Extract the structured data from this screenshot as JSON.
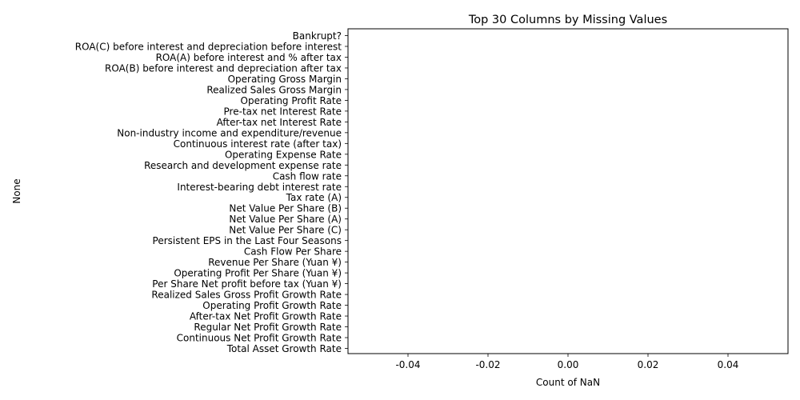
{
  "chart_data": {
    "type": "bar",
    "orientation": "horizontal",
    "title": "Top 30 Columns by Missing Values",
    "xlabel": "Count of NaN",
    "ylabel": "None",
    "xlim": [
      -0.055,
      0.055
    ],
    "xticks": [
      "-0.04",
      "-0.02",
      "0.00",
      "0.02",
      "0.04"
    ],
    "xtick_values": [
      -0.04,
      -0.02,
      0.0,
      0.02,
      0.04
    ],
    "grid": false,
    "categories": [
      "Bankrupt?",
      "ROA(C) before interest and depreciation before interest",
      "ROA(A) before interest and % after tax",
      "ROA(B) before interest and depreciation after tax",
      "Operating Gross Margin",
      "Realized Sales Gross Margin",
      "Operating Profit Rate",
      "Pre-tax net Interest Rate",
      "After-tax net Interest Rate",
      "Non-industry income and expenditure/revenue",
      "Continuous interest rate (after tax)",
      "Operating Expense Rate",
      "Research and development expense rate",
      "Cash flow rate",
      "Interest-bearing debt interest rate",
      "Tax rate (A)",
      "Net Value Per Share (B)",
      "Net Value Per Share (A)",
      "Net Value Per Share (C)",
      "Persistent EPS in the Last Four Seasons",
      "Cash Flow Per Share",
      "Revenue Per Share (Yuan ¥)",
      "Operating Profit Per Share (Yuan ¥)",
      "Per Share Net profit before tax (Yuan ¥)",
      "Realized Sales Gross Profit Growth Rate",
      "Operating Profit Growth Rate",
      "After-tax Net Profit Growth Rate",
      "Regular Net Profit Growth Rate",
      "Continuous Net Profit Growth Rate",
      "Total Asset Growth Rate"
    ],
    "values": [
      0,
      0,
      0,
      0,
      0,
      0,
      0,
      0,
      0,
      0,
      0,
      0,
      0,
      0,
      0,
      0,
      0,
      0,
      0,
      0,
      0,
      0,
      0,
      0,
      0,
      0,
      0,
      0,
      0,
      0
    ],
    "bar_color": "#1f77b4"
  }
}
